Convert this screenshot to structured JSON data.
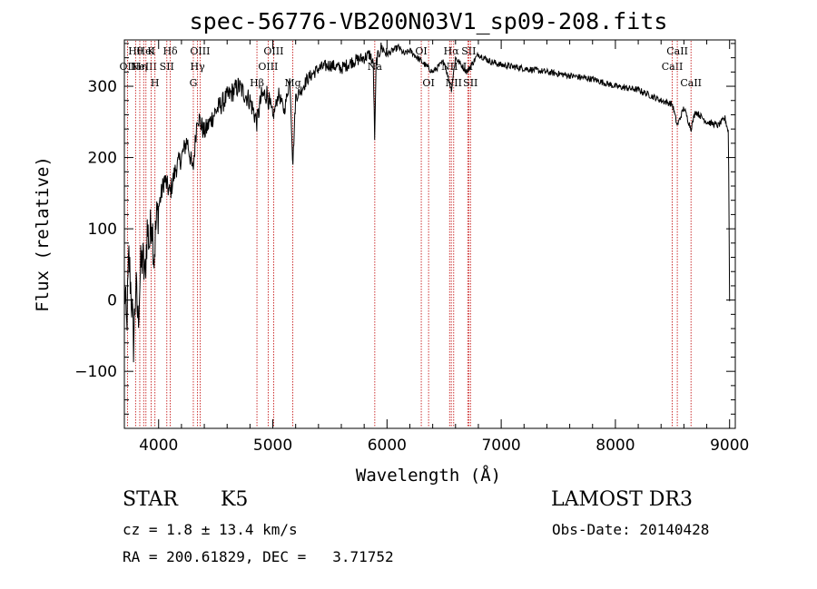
{
  "chart_data": {
    "type": "line",
    "title": "spec-56776-VB200N03V1_sp09-208.fits",
    "xlabel": "Wavelength (Å)",
    "ylabel": "Flux (relative)",
    "xlim": [
      3700,
      9050
    ],
    "ylim": [
      -180,
      365
    ],
    "xticks": [
      4000,
      5000,
      6000,
      7000,
      8000,
      9000
    ],
    "yticks": [
      -100,
      0,
      100,
      200,
      300
    ],
    "grid": false,
    "series": [
      {
        "name": "flux",
        "x": [
          3700,
          3720,
          3740,
          3760,
          3780,
          3800,
          3820,
          3840,
          3860,
          3880,
          3900,
          3920,
          3940,
          3960,
          3980,
          4000,
          4050,
          4100,
          4150,
          4200,
          4250,
          4300,
          4340,
          4400,
          4500,
          4600,
          4700,
          4800,
          4861,
          4900,
          4950,
          5000,
          5050,
          5100,
          5150,
          5175,
          5200,
          5250,
          5300,
          5400,
          5500,
          5600,
          5700,
          5800,
          5850,
          5880,
          5893,
          5905,
          5950,
          6000,
          6050,
          6100,
          6150,
          6200,
          6300,
          6400,
          6500,
          6563,
          6600,
          6700,
          6800,
          6900,
          7000,
          7200,
          7400,
          7600,
          7800,
          8000,
          8200,
          8400,
          8498,
          8542,
          8600,
          8662,
          8700,
          8800,
          8900,
          8960,
          8990,
          9000
        ],
        "y": [
          20,
          -40,
          60,
          10,
          -60,
          20,
          -30,
          40,
          60,
          30,
          100,
          80,
          120,
          60,
          110,
          130,
          170,
          150,
          185,
          200,
          225,
          180,
          260,
          235,
          265,
          285,
          300,
          280,
          250,
          285,
          290,
          255,
          290,
          265,
          310,
          190,
          285,
          295,
          310,
          325,
          330,
          325,
          335,
          340,
          345,
          330,
          220,
          335,
          355,
          345,
          350,
          355,
          345,
          350,
          335,
          320,
          335,
          295,
          340,
          320,
          345,
          335,
          330,
          325,
          320,
          315,
          310,
          300,
          295,
          280,
          275,
          245,
          270,
          240,
          265,
          250,
          245,
          255,
          235,
          0
        ]
      }
    ],
    "emission_lines": [
      {
        "wl": 3727,
        "row": 2,
        "label": "OII"
      },
      {
        "wl": 3798,
        "row": 1,
        "label": "Hθ"
      },
      {
        "wl": 3835,
        "row": 2,
        "label": "Hη"
      },
      {
        "wl": 3869,
        "row": 2,
        "label": "NeIII"
      },
      {
        "wl": 3889,
        "row": 1,
        "label": "HeI"
      },
      {
        "wl": 3934,
        "row": 1,
        "label": "K"
      },
      {
        "wl": 3968,
        "row": 3,
        "label": "H"
      },
      {
        "wl": 4072,
        "row": 2,
        "label": "SII"
      },
      {
        "wl": 4102,
        "row": 1,
        "label": "Hδ"
      },
      {
        "wl": 4304,
        "row": 3,
        "label": "G"
      },
      {
        "wl": 4341,
        "row": 2,
        "label": "Hγ"
      },
      {
        "wl": 4363,
        "row": 1,
        "label": "OIII"
      },
      {
        "wl": 4861,
        "row": 3,
        "label": "Hβ"
      },
      {
        "wl": 4959,
        "row": 2,
        "label": "OIII"
      },
      {
        "wl": 5007,
        "row": 1,
        "label": "OIII"
      },
      {
        "wl": 5175,
        "row": 3,
        "label": "Mg"
      },
      {
        "wl": 5893,
        "row": 2,
        "label": "Na"
      },
      {
        "wl": 6300,
        "row": 1,
        "label": "OI"
      },
      {
        "wl": 6364,
        "row": 3,
        "label": "OI"
      },
      {
        "wl": 6548,
        "row": 2,
        "label": "NII"
      },
      {
        "wl": 6563,
        "row": 1,
        "label": "Hα"
      },
      {
        "wl": 6584,
        "row": 3,
        "label": "NII"
      },
      {
        "wl": 6707,
        "row": 2,
        "label": "Li"
      },
      {
        "wl": 6716,
        "row": 1,
        "label": "SII"
      },
      {
        "wl": 6731,
        "row": 3,
        "label": "SII"
      },
      {
        "wl": 8498,
        "row": 2,
        "label": "CaII"
      },
      {
        "wl": 8542,
        "row": 1,
        "label": "CaII"
      },
      {
        "wl": 8662,
        "row": 3,
        "label": "CaII"
      }
    ]
  },
  "footer": {
    "class_label": "STAR",
    "subclass": "K5",
    "survey": "LAMOST DR3",
    "cz": "cz = 1.8 ± 13.4 km/s",
    "obs_date": "Obs-Date: 20140428",
    "coords": "RA = 200.61829, DEC =   3.71752"
  },
  "colors": {
    "line_markers": "#c00000",
    "spectrum": "#000000",
    "background": "#ffffff"
  }
}
